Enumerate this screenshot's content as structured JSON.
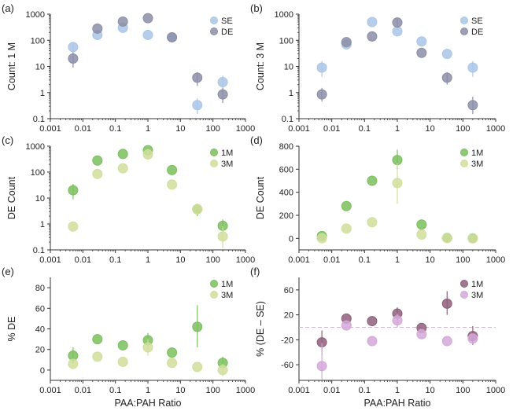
{
  "chart_data": [
    {
      "panel": "(a)",
      "type": "scatter",
      "xscale": "log",
      "yscale": "log",
      "xlim": [
        0.001,
        1000
      ],
      "ylim": [
        0.1,
        1000
      ],
      "xticks": [
        0.001,
        0.01,
        0.1,
        1,
        10,
        100,
        1000
      ],
      "xtick_labels": [
        "0.001",
        "0.01",
        "0.1",
        "1",
        "10",
        "100",
        "1000"
      ],
      "yticks": [
        0.1,
        1,
        10,
        100,
        1000
      ],
      "ytick_labels": [
        "0.1",
        "1",
        "10",
        "100",
        "1000"
      ],
      "xlabel": "",
      "ylabel": "Count: 1 M",
      "legend": "top-right",
      "series": [
        {
          "name": "SE",
          "color": "#aac6e6",
          "points": [
            {
              "x": 0.005,
              "y": 55,
              "lo": 30,
              "hi": 85
            },
            {
              "x": 0.028,
              "y": 160
            },
            {
              "x": 0.17,
              "y": 300
            },
            {
              "x": 1,
              "y": 160
            },
            {
              "x": 5.5,
              "y": 130
            },
            {
              "x": 33,
              "y": 0.33,
              "lo": 0.15,
              "hi": 0.6
            },
            {
              "x": 200,
              "y": 2.5,
              "lo": 0.9,
              "hi": 4.5
            }
          ]
        },
        {
          "name": "DE",
          "color": "#8c8ea8",
          "points": [
            {
              "x": 0.005,
              "y": 20,
              "lo": 9,
              "hi": 35
            },
            {
              "x": 0.028,
              "y": 280
            },
            {
              "x": 0.17,
              "y": 520
            },
            {
              "x": 1,
              "y": 700
            },
            {
              "x": 5.5,
              "y": 130
            },
            {
              "x": 33,
              "y": 3.7,
              "lo": 1.8,
              "hi": 6
            },
            {
              "x": 200,
              "y": 0.85,
              "lo": 0.4,
              "hi": 1.5
            }
          ]
        }
      ]
    },
    {
      "panel": "(b)",
      "type": "scatter",
      "xscale": "log",
      "yscale": "log",
      "xlim": [
        0.001,
        1000
      ],
      "ylim": [
        0.1,
        1000
      ],
      "xticks": [
        0.001,
        0.01,
        0.1,
        1,
        10,
        100,
        1000
      ],
      "xtick_labels": [
        "0.001",
        "0.01",
        "0.1",
        "1",
        "10",
        "100",
        "1000"
      ],
      "yticks": [
        0.1,
        1,
        10,
        100,
        1000
      ],
      "ytick_labels": [
        "0.1",
        "1",
        "10",
        "100",
        "1000"
      ],
      "xlabel": "",
      "ylabel": "Count: 3 M",
      "legend": "top-right",
      "series": [
        {
          "name": "SE",
          "color": "#aac6e6",
          "points": [
            {
              "x": 0.005,
              "y": 9,
              "lo": 4,
              "hi": 16
            },
            {
              "x": 0.028,
              "y": 70
            },
            {
              "x": 0.17,
              "y": 500
            },
            {
              "x": 1,
              "y": 220
            },
            {
              "x": 5.5,
              "y": 90
            },
            {
              "x": 33,
              "y": 30
            },
            {
              "x": 200,
              "y": 9,
              "lo": 4,
              "hi": 16
            }
          ]
        },
        {
          "name": "DE",
          "color": "#8c8ea8",
          "points": [
            {
              "x": 0.005,
              "y": 0.85,
              "lo": 0.45,
              "hi": 1.5
            },
            {
              "x": 0.028,
              "y": 85
            },
            {
              "x": 0.17,
              "y": 140
            },
            {
              "x": 1,
              "y": 480,
              "lo": 300,
              "hi": 700
            },
            {
              "x": 5.5,
              "y": 33
            },
            {
              "x": 33,
              "y": 3.7,
              "lo": 2,
              "hi": 6
            },
            {
              "x": 200,
              "y": 0.33,
              "lo": 0.15,
              "hi": 0.7
            }
          ]
        }
      ]
    },
    {
      "panel": "(c)",
      "type": "scatter",
      "xscale": "log",
      "yscale": "log",
      "xlim": [
        0.001,
        1000
      ],
      "ylim": [
        0.1,
        1000
      ],
      "xticks": [
        0.001,
        0.01,
        0.1,
        1,
        10,
        100,
        1000
      ],
      "xtick_labels": [
        "0.001",
        "0.01",
        "0.1",
        "1",
        "10",
        "100",
        "1000"
      ],
      "yticks": [
        0.1,
        1,
        10,
        100,
        1000
      ],
      "ytick_labels": [
        "0.1",
        "1",
        "10",
        "100",
        "1000"
      ],
      "xlabel": "",
      "ylabel": "DE Count",
      "legend": "top-right",
      "series": [
        {
          "name": "1M",
          "color": "#7bbf5e",
          "points": [
            {
              "x": 0.005,
              "y": 20,
              "lo": 9,
              "hi": 35
            },
            {
              "x": 0.028,
              "y": 280
            },
            {
              "x": 0.17,
              "y": 500
            },
            {
              "x": 1,
              "y": 700
            },
            {
              "x": 5.5,
              "y": 120
            },
            {
              "x": 33,
              "y": 3.7,
              "lo": 2,
              "hi": 6
            },
            {
              "x": 200,
              "y": 0.85,
              "lo": 0.4,
              "hi": 1.5
            }
          ]
        },
        {
          "name": "3M",
          "color": "#d1de9c",
          "points": [
            {
              "x": 0.005,
              "y": 0.8
            },
            {
              "x": 0.028,
              "y": 85
            },
            {
              "x": 0.17,
              "y": 140
            },
            {
              "x": 1,
              "y": 480,
              "lo": 300,
              "hi": 700
            },
            {
              "x": 5.5,
              "y": 33
            },
            {
              "x": 33,
              "y": 3.7
            },
            {
              "x": 200,
              "y": 0.33,
              "lo": 0.12,
              "hi": 0.8
            }
          ]
        }
      ]
    },
    {
      "panel": "(d)",
      "type": "scatter",
      "xscale": "log",
      "yscale": "linear",
      "xlim": [
        0.001,
        1000
      ],
      "ylim": [
        -100,
        800
      ],
      "xticks": [
        0.001,
        0.01,
        0.1,
        1,
        10,
        100,
        1000
      ],
      "xtick_labels": [
        "0.001",
        "0.01",
        "0.1",
        "1",
        "10",
        "100",
        "1000"
      ],
      "yticks": [
        0,
        200,
        400,
        600,
        800
      ],
      "ytick_labels": [
        "0",
        "200",
        "400",
        "600",
        "800"
      ],
      "xlabel": "",
      "ylabel": "DE Count",
      "legend": "top-right",
      "series": [
        {
          "name": "1M",
          "color": "#7bbf5e",
          "points": [
            {
              "x": 0.005,
              "y": 20,
              "lo": 5,
              "hi": 40
            },
            {
              "x": 0.028,
              "y": 280
            },
            {
              "x": 0.17,
              "y": 500
            },
            {
              "x": 1,
              "y": 680,
              "lo": 600,
              "hi": 770
            },
            {
              "x": 5.5,
              "y": 120
            },
            {
              "x": 33,
              "y": 3.7
            },
            {
              "x": 200,
              "y": 0.85
            }
          ]
        },
        {
          "name": "3M",
          "color": "#d1de9c",
          "points": [
            {
              "x": 0.005,
              "y": 0.8
            },
            {
              "x": 0.028,
              "y": 85
            },
            {
              "x": 0.17,
              "y": 140
            },
            {
              "x": 1,
              "y": 480,
              "lo": 300,
              "hi": 650
            },
            {
              "x": 5.5,
              "y": 33
            },
            {
              "x": 33,
              "y": 3.7
            },
            {
              "x": 200,
              "y": 0.33
            }
          ]
        }
      ]
    },
    {
      "panel": "(e)",
      "type": "scatter",
      "xscale": "log",
      "yscale": "linear",
      "xlim": [
        0.001,
        1000
      ],
      "ylim": [
        -10,
        90
      ],
      "xticks": [
        0.001,
        0.01,
        0.1,
        1,
        10,
        100,
        1000
      ],
      "xtick_labels": [
        "0.001",
        "0.01",
        "0.1",
        "1",
        "10",
        "100",
        "1000"
      ],
      "yticks": [
        0,
        20,
        40,
        60,
        80
      ],
      "ytick_labels": [
        "0",
        "20",
        "40",
        "60",
        "80"
      ],
      "xlabel": "PAA:PAH Ratio",
      "ylabel": "% DE",
      "legend": "top-right",
      "series": [
        {
          "name": "1M",
          "color": "#7bbf5e",
          "points": [
            {
              "x": 0.005,
              "y": 14,
              "lo": 6,
              "hi": 22
            },
            {
              "x": 0.028,
              "y": 30
            },
            {
              "x": 0.17,
              "y": 24
            },
            {
              "x": 1,
              "y": 29,
              "lo": 22,
              "hi": 36
            },
            {
              "x": 5.5,
              "y": 17
            },
            {
              "x": 33,
              "y": 42,
              "lo": 22,
              "hi": 63
            },
            {
              "x": 200,
              "y": 7,
              "lo": 2,
              "hi": 13
            }
          ]
        },
        {
          "name": "3M",
          "color": "#d1de9c",
          "points": [
            {
              "x": 0.005,
              "y": 6
            },
            {
              "x": 0.028,
              "y": 13
            },
            {
              "x": 0.17,
              "y": 8
            },
            {
              "x": 1,
              "y": 22,
              "lo": 14,
              "hi": 30
            },
            {
              "x": 5.5,
              "y": 7
            },
            {
              "x": 33,
              "y": 3
            },
            {
              "x": 200,
              "y": 0,
              "lo": -6,
              "hi": 6
            }
          ]
        }
      ]
    },
    {
      "panel": "(f)",
      "type": "scatter",
      "xscale": "log",
      "yscale": "linear",
      "xlim": [
        0.001,
        1000
      ],
      "ylim": [
        -85,
        80
      ],
      "xticks": [
        0.001,
        0.01,
        0.1,
        1,
        10,
        100,
        1000
      ],
      "xtick_labels": [
        "0.001",
        "0.01",
        "0.1",
        "1",
        "10",
        "100",
        "1000"
      ],
      "yticks": [
        -60,
        -20,
        20,
        60
      ],
      "ytick_labels": [
        "-60",
        "-20",
        "20",
        "60"
      ],
      "xlabel": "PAA:PAH Ratio",
      "ylabel": "% (DE – SE)",
      "legend": "top-right",
      "reference_line": 0,
      "series": [
        {
          "name": "1M",
          "color": "#8e5f7a",
          "points": [
            {
              "x": 0.005,
              "y": -24,
              "lo": -45,
              "hi": -5
            },
            {
              "x": 0.028,
              "y": 14
            },
            {
              "x": 0.17,
              "y": 10
            },
            {
              "x": 1,
              "y": 22,
              "lo": 12,
              "hi": 32
            },
            {
              "x": 5.5,
              "y": -1
            },
            {
              "x": 33,
              "y": 38,
              "lo": 20,
              "hi": 58
            },
            {
              "x": 200,
              "y": -14,
              "lo": -28,
              "hi": 2
            }
          ]
        },
        {
          "name": "3M",
          "color": "#d4a8d8",
          "points": [
            {
              "x": 0.005,
              "y": -62,
              "lo": -85,
              "hi": -25
            },
            {
              "x": 0.028,
              "y": 3
            },
            {
              "x": 0.17,
              "y": -22
            },
            {
              "x": 1,
              "y": 11,
              "lo": 0,
              "hi": 22
            },
            {
              "x": 5.5,
              "y": -11
            },
            {
              "x": 33,
              "y": -22
            },
            {
              "x": 200,
              "y": -18
            }
          ]
        }
      ]
    }
  ]
}
